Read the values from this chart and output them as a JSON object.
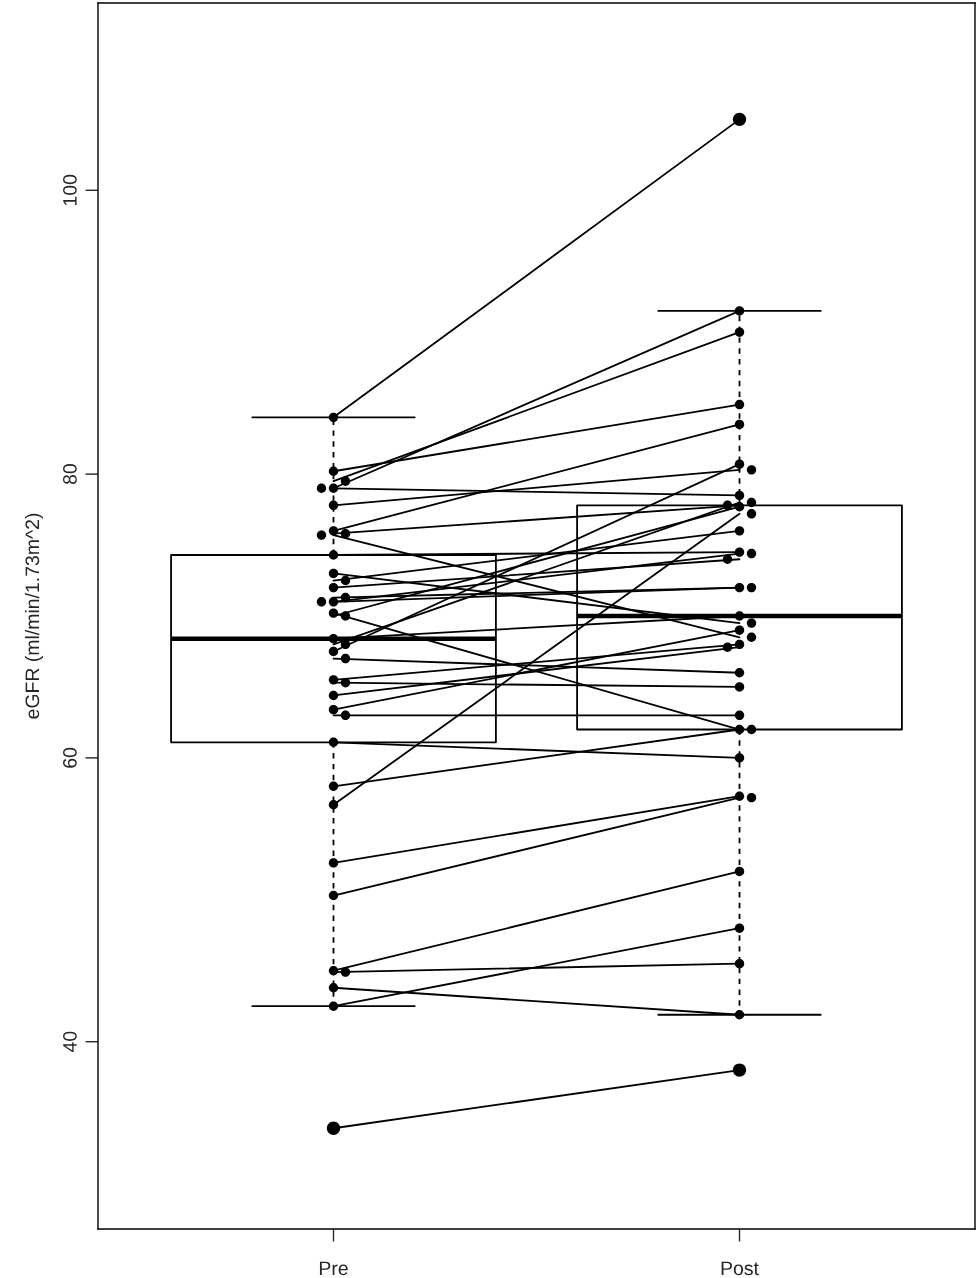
{
  "chart_data": {
    "type": "box",
    "categories": [
      "Pre",
      "Post"
    ],
    "ylabel": "eGFR (ml/min/1.73m^2)",
    "boxes": [
      {
        "low": 42.5,
        "q1": 61.1,
        "median": 68.4,
        "q3": 74.3,
        "high": 84.0
      },
      {
        "low": 41.9,
        "q1": 62.0,
        "median": 70.0,
        "q3": 77.8,
        "high": 91.5
      }
    ],
    "series": [
      {
        "type": "line",
        "color": "#000000",
        "values": [
          84.0,
          105.0
        ]
      },
      {
        "type": "line",
        "color": "#000000",
        "values": [
          80.2,
          84.9
        ]
      },
      {
        "type": "line",
        "color": "#000000",
        "values": [
          79.5,
          90.0
        ]
      },
      {
        "type": "line",
        "color": "#000000",
        "values": [
          79.0,
          91.5
        ]
      },
      {
        "type": "line",
        "color": "#000000",
        "values": [
          79.0,
          78.5
        ]
      },
      {
        "type": "line",
        "color": "#000000",
        "values": [
          77.8,
          80.3
        ]
      },
      {
        "type": "line",
        "color": "#000000",
        "values": [
          76.0,
          83.5
        ]
      },
      {
        "type": "line",
        "color": "#000000",
        "values": [
          75.8,
          77.8
        ]
      },
      {
        "type": "line",
        "color": "#000000",
        "values": [
          75.7,
          68.5
        ]
      },
      {
        "type": "line",
        "color": "#000000",
        "values": [
          74.3,
          74.5
        ]
      },
      {
        "type": "line",
        "color": "#000000",
        "values": [
          73.0,
          69.5
        ]
      },
      {
        "type": "line",
        "color": "#000000",
        "values": [
          72.5,
          76.0
        ]
      },
      {
        "type": "line",
        "color": "#000000",
        "values": [
          72.0,
          74.0
        ]
      },
      {
        "type": "line",
        "color": "#000000",
        "values": [
          71.3,
          72.0
        ]
      },
      {
        "type": "line",
        "color": "#000000",
        "values": [
          71.0,
          72.0
        ]
      },
      {
        "type": "line",
        "color": "#000000",
        "values": [
          71.0,
          74.4
        ]
      },
      {
        "type": "line",
        "color": "#000000",
        "values": [
          70.2,
          62.0
        ]
      },
      {
        "type": "line",
        "color": "#000000",
        "values": [
          70.0,
          77.7
        ]
      },
      {
        "type": "line",
        "color": "#000000",
        "values": [
          68.4,
          70.0
        ]
      },
      {
        "type": "line",
        "color": "#000000",
        "values": [
          68.0,
          78.0
        ]
      },
      {
        "type": "line",
        "color": "#000000",
        "values": [
          67.5,
          80.7
        ]
      },
      {
        "type": "line",
        "color": "#000000",
        "values": [
          67.0,
          66.0
        ]
      },
      {
        "type": "line",
        "color": "#000000",
        "values": [
          65.5,
          68.0
        ]
      },
      {
        "type": "line",
        "color": "#000000",
        "values": [
          65.3,
          65.0
        ]
      },
      {
        "type": "line",
        "color": "#000000",
        "values": [
          64.4,
          67.8
        ]
      },
      {
        "type": "line",
        "color": "#000000",
        "values": [
          63.4,
          69.0
        ]
      },
      {
        "type": "line",
        "color": "#000000",
        "values": [
          63.0,
          63.0
        ]
      },
      {
        "type": "line",
        "color": "#000000",
        "values": [
          61.1,
          60.0
        ]
      },
      {
        "type": "line",
        "color": "#000000",
        "values": [
          58.0,
          62.0
        ]
      },
      {
        "type": "line",
        "color": "#000000",
        "values": [
          56.7,
          77.2
        ]
      },
      {
        "type": "line",
        "color": "#000000",
        "values": [
          52.6,
          57.3
        ]
      },
      {
        "type": "line",
        "color": "#000000",
        "values": [
          50.3,
          57.2
        ]
      },
      {
        "type": "line",
        "color": "#000000",
        "values": [
          45.0,
          52.0
        ]
      },
      {
        "type": "line",
        "color": "#000000",
        "values": [
          44.9,
          45.5
        ]
      },
      {
        "type": "line",
        "color": "#000000",
        "values": [
          43.8,
          41.9
        ]
      },
      {
        "type": "line",
        "color": "#000000",
        "values": [
          42.5,
          48.0
        ]
      },
      {
        "type": "line",
        "color": "#000000",
        "values": [
          33.9,
          38.0
        ]
      }
    ],
    "marker": "circle",
    "ylim": [
      26.8,
      113.2
    ],
    "yticks": [
      40,
      60,
      80,
      100
    ]
  }
}
